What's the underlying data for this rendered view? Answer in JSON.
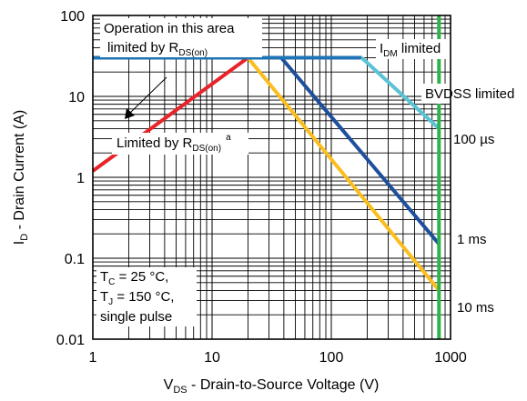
{
  "chart_data": {
    "type": "line",
    "title": "",
    "x_scale": "log",
    "y_scale": "log",
    "xlim": [
      1,
      1000
    ],
    "ylim": [
      0.01,
      100
    ],
    "grid": true,
    "xlabel": {
      "main": "V",
      "sub": "DS",
      "rest": " - Drain-to-Source Voltage (V)"
    },
    "ylabel": {
      "main": "I",
      "sub": "D",
      "rest": " - Drain Current (A)"
    },
    "x_ticks": [
      {
        "value": 1,
        "label": "1"
      },
      {
        "value": 10,
        "label": "10"
      },
      {
        "value": 100,
        "label": "100"
      },
      {
        "value": 1000,
        "label": "1000"
      }
    ],
    "y_ticks": [
      {
        "value": 100,
        "label": "100"
      },
      {
        "value": 10,
        "label": "10"
      },
      {
        "value": 1,
        "label": "1"
      },
      {
        "value": 0.1,
        "label": "0.1"
      },
      {
        "value": 0.01,
        "label": "0.01"
      }
    ],
    "series": [
      {
        "key": "rds",
        "color": "#e8232a",
        "x": [
          1,
          20
        ],
        "y": [
          1.2,
          30
        ]
      },
      {
        "key": "dc",
        "color": "#fbbe1e",
        "x": [
          20,
          800
        ],
        "y": [
          30,
          0.04
        ]
      },
      {
        "key": "ms1",
        "color": "#1e4f9c",
        "x": [
          38,
          800
        ],
        "y": [
          30,
          0.15
        ]
      },
      {
        "key": "idm",
        "color": "#1e73b4",
        "x": [
          1,
          180
        ],
        "y": [
          30,
          30
        ]
      },
      {
        "key": "us100",
        "color": "#5bc3d6",
        "x": [
          180,
          800
        ],
        "y": [
          30,
          4
        ]
      },
      {
        "key": "bvdss",
        "color": "#2eb34a",
        "x": [
          800,
          800
        ],
        "y": [
          0.01,
          100
        ]
      }
    ],
    "annotations": {
      "op_area_line1": "Operation in this area",
      "op_area_line2_main": "limited by R",
      "op_area_line2_sub": "DS(on)",
      "limited_rds_main": "Limited by R",
      "limited_rds_sub": "DS(on)",
      "limited_rds_sup": "a",
      "idm_main": "I",
      "idm_sub": "DM",
      "idm_rest": " limited",
      "bvdss": "BVDSS limited",
      "label_100us": "100 µs",
      "label_1ms": "1 ms",
      "label_10ms": "10 ms",
      "cond_tc_main": "T",
      "cond_tc_sub": "C",
      "cond_tc_rest": " = 25 °C,",
      "cond_tj_main": "T",
      "cond_tj_sub": "J",
      "cond_tj_rest": " = 150 °C,",
      "cond_pulse": "single pulse"
    }
  }
}
